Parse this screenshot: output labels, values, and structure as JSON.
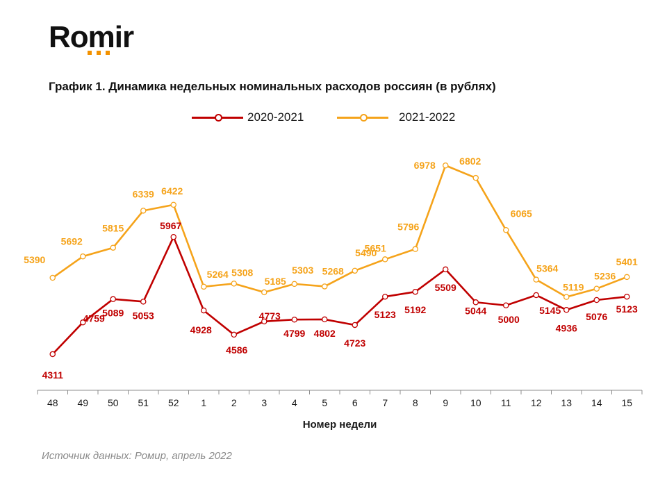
{
  "logo": {
    "text": "Romir",
    "dots_color": "#f39200"
  },
  "chart_data": {
    "type": "line",
    "title": "График 1. Динамика недельных номинальных расходов россиян (в рублях)",
    "xlabel": "Номер недели",
    "ylabel": "",
    "categories": [
      "48",
      "49",
      "50",
      "51",
      "52",
      "1",
      "2",
      "3",
      "4",
      "5",
      "6",
      "7",
      "8",
      "9",
      "10",
      "11",
      "12",
      "13",
      "14",
      "15"
    ],
    "series": [
      {
        "name": "2020-2021",
        "color": "#c00000",
        "values": [
          4311,
          4759,
          5089,
          5053,
          5967,
          4928,
          4586,
          4773,
          4799,
          4802,
          4723,
          5123,
          5192,
          5509,
          5044,
          5000,
          5145,
          4936,
          5076,
          5123
        ]
      },
      {
        "name": "2021-2022",
        "color": "#f5a31a",
        "values": [
          5390,
          5692,
          5815,
          6339,
          6422,
          5264,
          5308,
          5185,
          5303,
          5268,
          5490,
          5651,
          5796,
          6978,
          6802,
          6065,
          5364,
          5119,
          5236,
          5401
        ]
      }
    ],
    "ylim": [
      3800,
      7000
    ],
    "grid": false,
    "legend_position": "top"
  },
  "source": "Источник данных: Ромир, апрель 2022"
}
